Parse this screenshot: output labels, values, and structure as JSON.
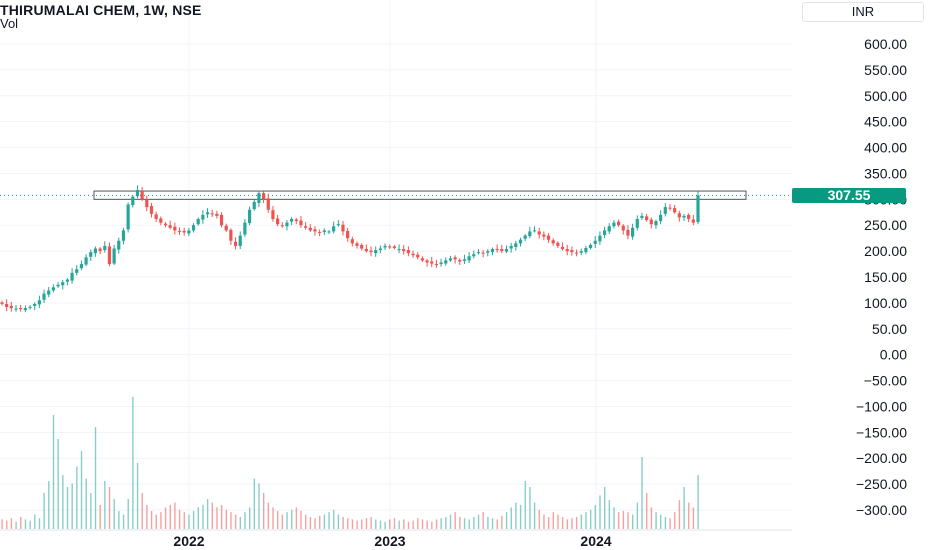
{
  "header": {
    "title": "THIRUMALAI CHEM, 1W, NSE",
    "volume_label": "Vol",
    "currency": "INR"
  },
  "price_tag": "307.55",
  "colors": {
    "up": "#26a69a",
    "down": "#ef5350",
    "last_price": "#089981",
    "grid": "#f0f3fa"
  },
  "chart_data": {
    "type": "candlestick",
    "y_axis": {
      "ticks": [
        600,
        550,
        500,
        450,
        400,
        350,
        300,
        250,
        200,
        150,
        100,
        50,
        0,
        -50,
        -100,
        -150,
        -200,
        -250,
        -300
      ],
      "tick_labels": [
        "600.00",
        "550.00",
        "500.00",
        "450.00",
        "400.00",
        "350.00",
        "300.00",
        "250.00",
        "200.00",
        "150.00",
        "100.00",
        "50.00",
        "0.00",
        "−50.00",
        "−100.00",
        "−150.00",
        "−200.00",
        "−250.00",
        "−300.00"
      ],
      "range": [
        -318,
        630
      ]
    },
    "x_axis": {
      "labels": [
        "2022",
        "2023",
        "2024"
      ]
    },
    "last_price": 307.55,
    "resistance_zone": [
      300,
      316
    ],
    "grid": true,
    "series_close_weekly_approx": [
      98,
      92,
      90,
      89,
      88,
      90,
      92,
      98,
      105,
      118,
      124,
      130,
      135,
      140,
      145,
      158,
      165,
      175,
      188,
      198,
      205,
      200,
      210,
      175,
      205,
      220,
      240,
      290,
      305,
      318,
      300,
      285,
      272,
      262,
      255,
      250,
      245,
      240,
      238,
      236,
      240,
      250,
      262,
      270,
      275,
      272,
      268,
      250,
      240,
      220,
      210,
      230,
      255,
      280,
      295,
      312,
      300,
      280,
      262,
      252,
      248,
      255,
      262,
      258,
      250,
      245,
      240,
      238,
      236,
      240,
      238,
      248,
      252,
      238,
      225,
      215,
      210,
      205,
      200,
      198,
      202,
      205,
      210,
      208,
      206,
      204,
      200,
      196,
      192,
      188,
      182,
      178,
      176,
      174,
      178,
      182,
      186,
      184,
      180,
      184,
      190,
      194,
      198,
      196,
      200,
      204,
      202,
      200,
      204,
      210,
      215,
      222,
      230,
      238,
      240,
      232,
      228,
      222,
      215,
      210,
      204,
      200,
      198,
      196,
      200,
      206,
      212,
      220,
      230,
      240,
      248,
      255,
      250,
      240,
      230,
      245,
      262,
      268,
      260,
      252,
      258,
      270,
      285,
      282,
      275,
      265,
      268,
      262,
      255,
      307.55
    ],
    "volume_bars_approx": [
      8,
      7,
      9,
      6,
      10,
      8,
      7,
      12,
      9,
      30,
      40,
      95,
      75,
      45,
      35,
      38,
      52,
      65,
      42,
      30,
      85,
      20,
      40,
      35,
      25,
      15,
      12,
      25,
      110,
      55,
      30,
      20,
      15,
      12,
      14,
      18,
      20,
      22,
      16,
      14,
      12,
      15,
      18,
      20,
      25,
      22,
      18,
      20,
      16,
      14,
      12,
      10,
      14,
      18,
      42,
      38,
      30,
      22,
      18,
      15,
      12,
      14,
      16,
      18,
      15,
      12,
      10,
      9,
      11,
      12,
      14,
      16,
      12,
      10,
      9,
      8,
      7,
      8,
      9,
      10,
      8,
      7,
      6,
      8,
      9,
      7,
      8,
      6,
      7,
      9,
      8,
      7,
      6,
      8,
      9,
      10,
      12,
      14,
      10,
      9,
      8,
      10,
      12,
      14,
      10,
      9,
      8,
      11,
      14,
      18,
      22,
      20,
      40,
      35,
      22,
      16,
      12,
      10,
      14,
      12,
      10,
      8,
      9,
      10,
      12,
      14,
      16,
      20,
      28,
      35,
      24,
      18,
      14,
      15,
      14,
      12,
      22,
      60,
      30,
      18,
      14,
      12,
      10,
      9,
      14,
      24,
      35,
      22,
      18,
      45
    ]
  }
}
